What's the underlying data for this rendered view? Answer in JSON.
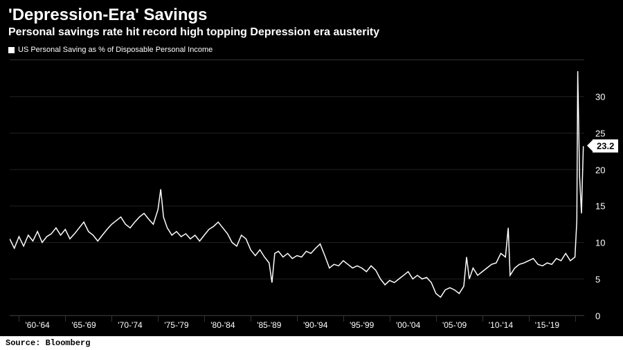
{
  "title": "'Depression-Era' Savings",
  "subtitle": "Personal savings rate hit record high topping Depression era austerity",
  "legend_label": "US Personal Saving as % of Disposable Personal Income",
  "source": "Source: Bloomberg",
  "chart": {
    "type": "line",
    "background_color": "#000000",
    "line_color": "#ffffff",
    "line_width": 1.5,
    "grid_color": "#222222",
    "axis_color": "#333333",
    "text_color": "#ffffff",
    "title_fontsize": 24,
    "subtitle_fontsize": 16,
    "legend_fontsize": 11,
    "tick_fontsize": 13,
    "x_range": [
      1959,
      2021
    ],
    "y_range": [
      0,
      35
    ],
    "y_ticks": [
      0,
      5,
      10,
      15,
      20,
      25,
      30
    ],
    "x_tick_labels": [
      "'60-'64",
      "'65-'69",
      "'70-'74",
      "'75-'79",
      "'80-'84",
      "'85-'89",
      "'90-'94",
      "'95-'99",
      "'00-'04",
      "'05-'09",
      "'10-'14",
      "'15-'19"
    ],
    "x_tick_centers": [
      1962,
      1967,
      1972,
      1977,
      1982,
      1987,
      1992,
      1997,
      2002,
      2007,
      2012,
      2017
    ],
    "x_separators": [
      1960,
      1965,
      1970,
      1975,
      1980,
      1985,
      1990,
      1995,
      2000,
      2005,
      2010,
      2015,
      2020
    ],
    "last_value": 23.2,
    "last_value_label": "23.2",
    "series": [
      [
        1959.0,
        10.5
      ],
      [
        1959.5,
        9.2
      ],
      [
        1960.0,
        10.8
      ],
      [
        1960.5,
        9.5
      ],
      [
        1961.0,
        11.0
      ],
      [
        1961.5,
        10.2
      ],
      [
        1962.0,
        11.5
      ],
      [
        1962.5,
        10.0
      ],
      [
        1963.0,
        10.8
      ],
      [
        1963.5,
        11.2
      ],
      [
        1964.0,
        12.0
      ],
      [
        1964.5,
        11.0
      ],
      [
        1965.0,
        11.8
      ],
      [
        1965.5,
        10.5
      ],
      [
        1966.0,
        11.2
      ],
      [
        1966.5,
        12.0
      ],
      [
        1967.0,
        12.8
      ],
      [
        1967.5,
        11.5
      ],
      [
        1968.0,
        11.0
      ],
      [
        1968.5,
        10.2
      ],
      [
        1969.0,
        11.0
      ],
      [
        1969.5,
        11.8
      ],
      [
        1970.0,
        12.5
      ],
      [
        1970.5,
        13.0
      ],
      [
        1971.0,
        13.5
      ],
      [
        1971.5,
        12.5
      ],
      [
        1972.0,
        12.0
      ],
      [
        1972.5,
        12.8
      ],
      [
        1973.0,
        13.5
      ],
      [
        1973.5,
        14.0
      ],
      [
        1974.0,
        13.2
      ],
      [
        1974.5,
        12.5
      ],
      [
        1975.0,
        14.5
      ],
      [
        1975.3,
        17.3
      ],
      [
        1975.6,
        13.5
      ],
      [
        1976.0,
        12.0
      ],
      [
        1976.5,
        11.0
      ],
      [
        1977.0,
        11.5
      ],
      [
        1977.5,
        10.8
      ],
      [
        1978.0,
        11.2
      ],
      [
        1978.5,
        10.5
      ],
      [
        1979.0,
        11.0
      ],
      [
        1979.5,
        10.2
      ],
      [
        1980.0,
        11.0
      ],
      [
        1980.5,
        11.8
      ],
      [
        1981.0,
        12.2
      ],
      [
        1981.5,
        12.8
      ],
      [
        1982.0,
        12.0
      ],
      [
        1982.5,
        11.2
      ],
      [
        1983.0,
        10.0
      ],
      [
        1983.5,
        9.5
      ],
      [
        1984.0,
        11.0
      ],
      [
        1984.5,
        10.5
      ],
      [
        1985.0,
        9.0
      ],
      [
        1985.5,
        8.2
      ],
      [
        1986.0,
        9.0
      ],
      [
        1986.5,
        8.0
      ],
      [
        1987.0,
        7.2
      ],
      [
        1987.3,
        4.5
      ],
      [
        1987.6,
        8.5
      ],
      [
        1988.0,
        8.8
      ],
      [
        1988.5,
        8.0
      ],
      [
        1989.0,
        8.5
      ],
      [
        1989.5,
        7.8
      ],
      [
        1990.0,
        8.2
      ],
      [
        1990.5,
        8.0
      ],
      [
        1991.0,
        8.8
      ],
      [
        1991.5,
        8.5
      ],
      [
        1992.0,
        9.2
      ],
      [
        1992.5,
        9.8
      ],
      [
        1993.0,
        8.2
      ],
      [
        1993.5,
        6.5
      ],
      [
        1994.0,
        7.0
      ],
      [
        1994.5,
        6.8
      ],
      [
        1995.0,
        7.5
      ],
      [
        1995.5,
        7.0
      ],
      [
        1996.0,
        6.5
      ],
      [
        1996.5,
        6.8
      ],
      [
        1997.0,
        6.5
      ],
      [
        1997.5,
        6.0
      ],
      [
        1998.0,
        6.8
      ],
      [
        1998.5,
        6.2
      ],
      [
        1999.0,
        5.0
      ],
      [
        1999.5,
        4.2
      ],
      [
        2000.0,
        4.8
      ],
      [
        2000.5,
        4.5
      ],
      [
        2001.0,
        5.0
      ],
      [
        2001.5,
        5.5
      ],
      [
        2002.0,
        6.0
      ],
      [
        2002.5,
        5.0
      ],
      [
        2003.0,
        5.5
      ],
      [
        2003.5,
        5.0
      ],
      [
        2004.0,
        5.2
      ],
      [
        2004.5,
        4.5
      ],
      [
        2005.0,
        3.0
      ],
      [
        2005.5,
        2.5
      ],
      [
        2006.0,
        3.5
      ],
      [
        2006.5,
        3.8
      ],
      [
        2007.0,
        3.5
      ],
      [
        2007.5,
        3.0
      ],
      [
        2008.0,
        4.0
      ],
      [
        2008.3,
        8.0
      ],
      [
        2008.6,
        5.0
      ],
      [
        2009.0,
        6.5
      ],
      [
        2009.5,
        5.5
      ],
      [
        2010.0,
        6.0
      ],
      [
        2010.5,
        6.5
      ],
      [
        2011.0,
        7.0
      ],
      [
        2011.5,
        7.2
      ],
      [
        2012.0,
        8.5
      ],
      [
        2012.5,
        8.0
      ],
      [
        2012.8,
        12.0
      ],
      [
        2013.0,
        5.5
      ],
      [
        2013.5,
        6.5
      ],
      [
        2014.0,
        7.0
      ],
      [
        2014.5,
        7.2
      ],
      [
        2015.0,
        7.5
      ],
      [
        2015.5,
        7.8
      ],
      [
        2016.0,
        7.0
      ],
      [
        2016.5,
        6.8
      ],
      [
        2017.0,
        7.2
      ],
      [
        2017.5,
        7.0
      ],
      [
        2018.0,
        7.8
      ],
      [
        2018.5,
        7.5
      ],
      [
        2019.0,
        8.5
      ],
      [
        2019.5,
        7.5
      ],
      [
        2020.0,
        8.0
      ],
      [
        2020.2,
        13.0
      ],
      [
        2020.3,
        33.5
      ],
      [
        2020.5,
        19.0
      ],
      [
        2020.7,
        14.0
      ],
      [
        2020.9,
        23.2
      ]
    ]
  }
}
